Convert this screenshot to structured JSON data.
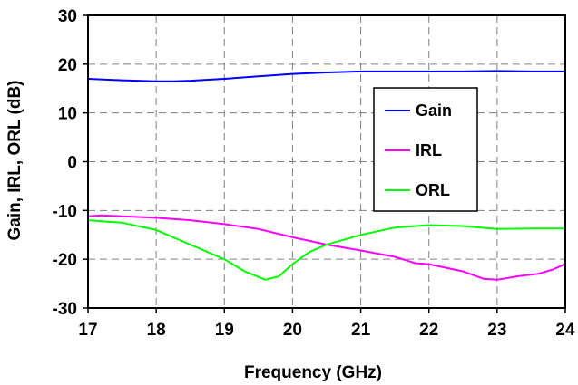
{
  "chart_data": {
    "type": "line",
    "title": "",
    "xlabel": "Frequency (GHz)",
    "ylabel": "Gain, IRL, ORL (dB)",
    "xlim": [
      17,
      24
    ],
    "ylim": [
      -30,
      30
    ],
    "x_ticks": [
      "17",
      "18",
      "19",
      "20",
      "21",
      "22",
      "23",
      "24"
    ],
    "y_ticks": [
      "30",
      "20",
      "10",
      "0",
      "-10",
      "-20",
      "-30"
    ],
    "grid": true,
    "legend_position": "right-center",
    "series": [
      {
        "name": "Gain",
        "color": "#0000ff",
        "x": [
          17,
          17.5,
          18,
          18.25,
          18.5,
          19,
          19.5,
          20,
          20.5,
          21,
          21.5,
          22,
          22.5,
          23,
          23.5,
          24
        ],
        "y": [
          17,
          16.7,
          16.5,
          16.5,
          16.6,
          17,
          17.5,
          18,
          18.3,
          18.5,
          18.5,
          18.5,
          18.5,
          18.6,
          18.5,
          18.5
        ]
      },
      {
        "name": "IRL",
        "color": "#ff00ff",
        "x": [
          17,
          17.2,
          17.5,
          18,
          18.5,
          19,
          19.5,
          20,
          20.5,
          21,
          21.5,
          21.8,
          22,
          22.5,
          22.8,
          23,
          23.3,
          23.6,
          23.8,
          24
        ],
        "y": [
          -11.2,
          -11,
          -11.2,
          -11.5,
          -12,
          -12.8,
          -13.8,
          -15.5,
          -17,
          -18.2,
          -19.5,
          -20.8,
          -21,
          -22.5,
          -24,
          -24.2,
          -23.5,
          -23,
          -22.2,
          -21
        ]
      },
      {
        "name": "ORL",
        "color": "#00ff00",
        "x": [
          17,
          17.5,
          18,
          18.5,
          19,
          19.3,
          19.6,
          19.8,
          20,
          20.25,
          20.5,
          21,
          21.5,
          22,
          22.5,
          23,
          23.5,
          24
        ],
        "y": [
          -12,
          -12.5,
          -14,
          -17,
          -20,
          -22.5,
          -24.2,
          -23.5,
          -21,
          -18.5,
          -17,
          -15,
          -13.5,
          -13,
          -13.2,
          -13.8,
          -13.7,
          -13.7
        ]
      }
    ]
  }
}
